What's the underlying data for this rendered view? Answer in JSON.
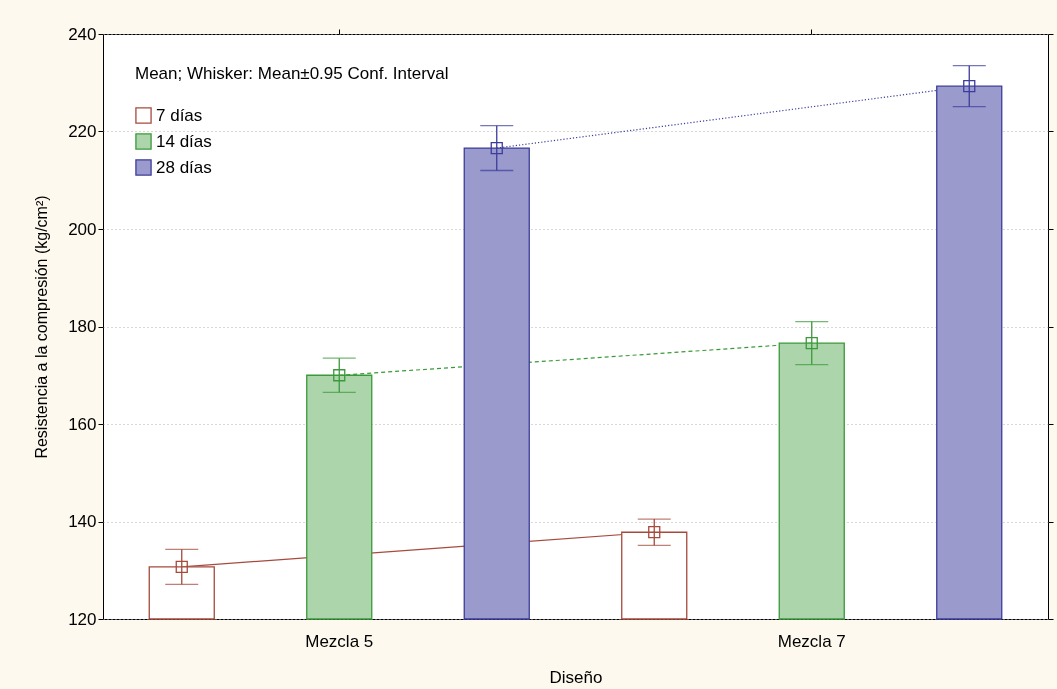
{
  "chart_data": {
    "type": "bar",
    "xlabel": "Diseño",
    "ylabel": "Resistencia a la compresión (kg/cm²)",
    "legend_title": "Mean; Whisker: Mean±0.95 Conf. Interval",
    "categories": [
      "Mezcla 5",
      "Mezcla 7"
    ],
    "series": [
      {
        "name": "7 días",
        "color": "#a64a3c",
        "values": [
          130.7,
          137.8
        ],
        "errors": [
          3.6,
          2.7
        ]
      },
      {
        "name": "14 días",
        "color": "#3a9a3a",
        "values": [
          170.0,
          176.6
        ],
        "errors": [
          3.5,
          4.4
        ]
      },
      {
        "name": "28 días",
        "color": "#3c3c9c",
        "values": [
          216.6,
          229.3
        ],
        "errors": [
          4.6,
          4.2
        ]
      },
      {
        "type": "line",
        "color": "#a64a3c",
        "values": [
          130.7,
          137.8
        ],
        "line_style": "solid",
        "marker": "square"
      },
      {
        "type": "line",
        "color": "#3a9a3a",
        "values": [
          170.0,
          176.6
        ],
        "line_style": "dashed",
        "marker": "square"
      },
      {
        "type": "line",
        "color": "#3c3c9c",
        "values": [
          216.6,
          229.3
        ],
        "line_style": "dotted",
        "marker": "square"
      }
    ],
    "ylim": [
      120,
      240
    ],
    "yticks": [
      120,
      140,
      160,
      180,
      200,
      220,
      240
    ],
    "grid": "y",
    "legend": "top left"
  }
}
